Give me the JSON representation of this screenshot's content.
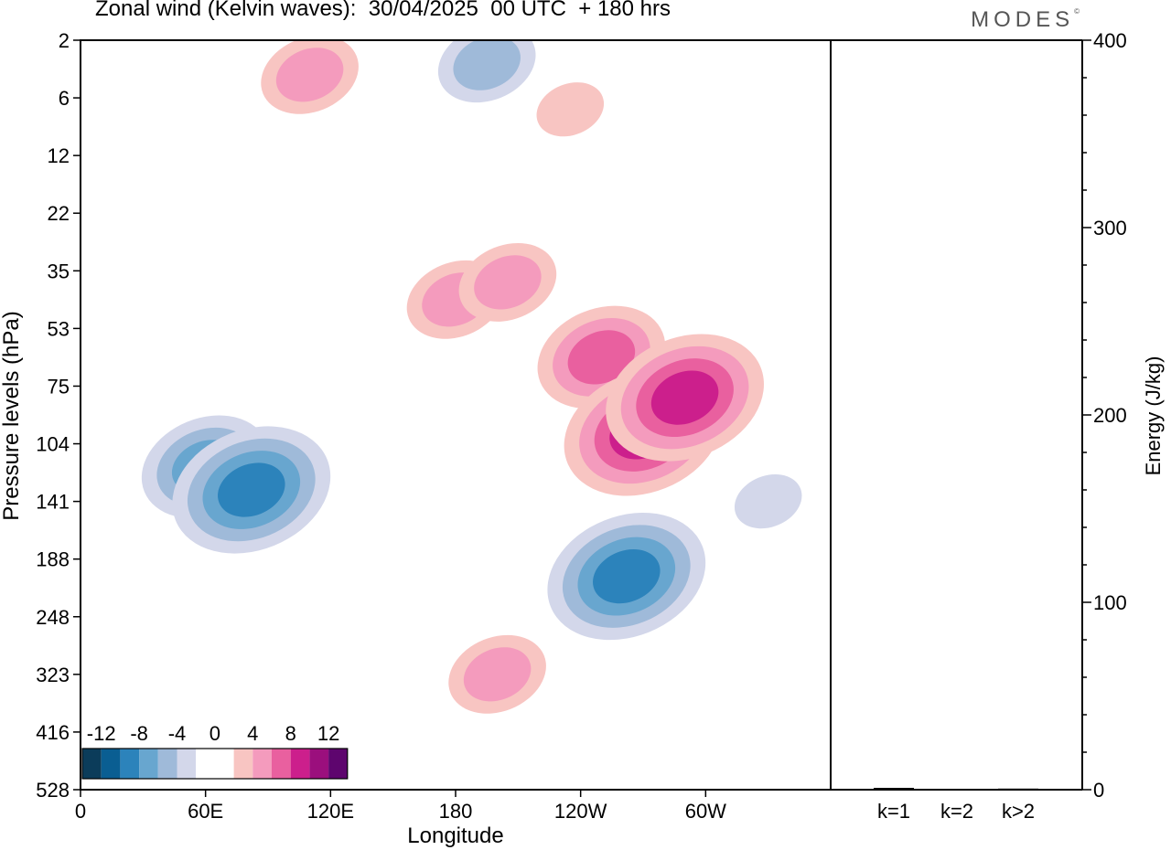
{
  "header": {
    "title": "Zonal wind (Kelvin waves):  30/04/2025  00 UTC  + 180 hrs",
    "logo": "MODES",
    "logo_mark": "©"
  },
  "chart_data": [
    {
      "type": "heatmap",
      "title": "Zonal wind (Kelvin waves):  30/04/2025  00 UTC  + 180 hrs",
      "xlabel": "Longitude",
      "ylabel": "Pressure levels (hPa)",
      "x_ticks": [
        "0",
        "60E",
        "120E",
        "180",
        "120W",
        "60W"
      ],
      "y_ticks": [
        "2",
        "6",
        "12",
        "22",
        "35",
        "53",
        "75",
        "104",
        "141",
        "188",
        "248",
        "323",
        "416",
        "528"
      ],
      "legend_labels": [
        "-12",
        "-8",
        "-4",
        "0",
        "4",
        "8",
        "12"
      ],
      "legend_colors": [
        "#0b3c5a",
        "#0a5e92",
        "#2c83bb",
        "#68a6cf",
        "#9fbad9",
        "#d3d7ea",
        "#ffffff",
        "#ffffff",
        "#f8c5c2",
        "#f49bbd",
        "#e9609f",
        "#cc1f8c",
        "#9b0f7d",
        "#5e056e"
      ],
      "legend_placement": "bottom-left",
      "fields": [
        {
          "lon": 180,
          "lev": 4.5,
          "value": 5.2
        },
        {
          "lon": 205,
          "lev": 4.2,
          "value": 5.5
        },
        {
          "lon": 250,
          "lev": 5.5,
          "value": 7.0
        },
        {
          "lon": 270,
          "lev": 6.8,
          "value": 9.0
        },
        {
          "lon": 290,
          "lev": 6.2,
          "value": 9.5
        },
        {
          "lon": 60,
          "lev": 7.4,
          "value": -7.0
        },
        {
          "lon": 82,
          "lev": 7.8,
          "value": -8.5
        },
        {
          "lon": 262,
          "lev": 9.3,
          "value": -8.8
        },
        {
          "lon": 200,
          "lev": 11.0,
          "value": 4.5
        },
        {
          "lon": 330,
          "lev": 8.0,
          "value": -3.5
        },
        {
          "lon": 195,
          "lev": 0.4,
          "value": -5.0
        },
        {
          "lon": 110,
          "lev": 0.6,
          "value": 4.8
        },
        {
          "lon": 235,
          "lev": 1.2,
          "value": 3.8
        }
      ]
    },
    {
      "type": "bar",
      "categories": [
        "k=1",
        "k=2",
        "k>2"
      ],
      "values": [
        1.0,
        0.5,
        0.6
      ],
      "ylabel": "Energy (J/kg)",
      "ylim": [
        0,
        400
      ],
      "y_ticks": [
        "0",
        "100",
        "200",
        "300",
        "400"
      ]
    }
  ],
  "colors": {
    "axis": "#000000",
    "bar": "#000000"
  }
}
